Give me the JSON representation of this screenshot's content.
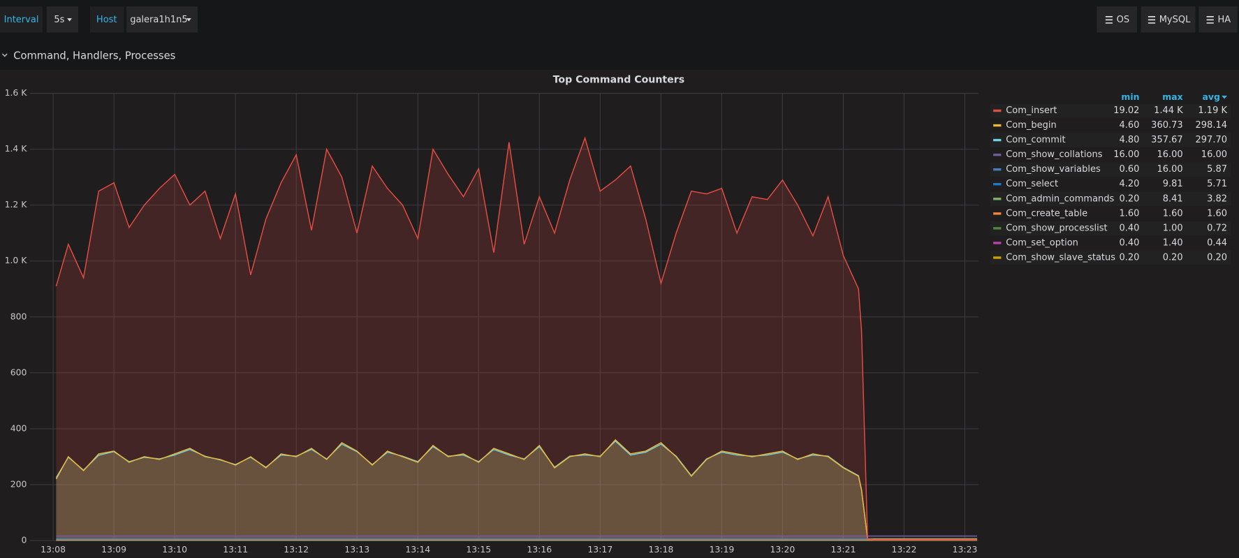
{
  "toolbar": {
    "interval_label": "Interval",
    "interval_value": "5s",
    "host_label": "Host",
    "host_value": "galera1h1n5",
    "links": [
      "OS",
      "MySQL",
      "HA"
    ]
  },
  "row_title": "Command, Handlers, Processes",
  "chart_data": {
    "type": "line",
    "title": "Top Command Counters",
    "grid": true,
    "fill": true,
    "legend_columns": [
      "min",
      "max",
      "avg"
    ],
    "xlim": [
      7.62,
      23.22
    ],
    "xticks": [
      {
        "value": 8,
        "label": "13:08"
      },
      {
        "value": 9,
        "label": "13:09"
      },
      {
        "value": 10,
        "label": "13:10"
      },
      {
        "value": 11,
        "label": "13:11"
      },
      {
        "value": 12,
        "label": "13:12"
      },
      {
        "value": 13,
        "label": "13:13"
      },
      {
        "value": 14,
        "label": "13:14"
      },
      {
        "value": 15,
        "label": "13:15"
      },
      {
        "value": 16,
        "label": "13:16"
      },
      {
        "value": 17,
        "label": "13:17"
      },
      {
        "value": 18,
        "label": "13:18"
      },
      {
        "value": 19,
        "label": "13:19"
      },
      {
        "value": 20,
        "label": "13:20"
      },
      {
        "value": 21,
        "label": "13:21"
      },
      {
        "value": 22,
        "label": "13:22"
      },
      {
        "value": 23,
        "label": "13:23"
      }
    ],
    "ylim": [
      0,
      1600
    ],
    "yticks": [
      0,
      200,
      400,
      600,
      800,
      {
        "value": 1000,
        "label": "1.0 K"
      },
      {
        "value": 1200,
        "label": "1.2 K"
      },
      {
        "value": 1400,
        "label": "1.4 K"
      },
      {
        "value": 1600,
        "label": "1.6 K"
      }
    ],
    "x": [
      8.05,
      8.25,
      8.5,
      8.75,
      9.0,
      9.25,
      9.5,
      9.75,
      10.0,
      10.25,
      10.5,
      10.75,
      11.0,
      11.25,
      11.5,
      11.75,
      12.0,
      12.25,
      12.5,
      12.75,
      13.0,
      13.25,
      13.5,
      13.75,
      14.0,
      14.25,
      14.5,
      14.75,
      15.0,
      15.25,
      15.5,
      15.75,
      16.0,
      16.25,
      16.5,
      16.75,
      17.0,
      17.25,
      17.5,
      17.75,
      18.0,
      18.25,
      18.5,
      18.75,
      19.0,
      19.25,
      19.5,
      19.75,
      20.0,
      20.25,
      20.5,
      20.75,
      21.0,
      21.25,
      21.3,
      21.4,
      21.5,
      21.75,
      22.0,
      22.25,
      22.5,
      22.75,
      23.0,
      23.2
    ],
    "series": [
      {
        "name": "Com_insert",
        "color": "#e24d42",
        "legend_stats": [
          "19.02",
          "1.44 K",
          "1.19 K"
        ],
        "values": [
          910,
          1060,
          940,
          1250,
          1280,
          1120,
          1200,
          1260,
          1310,
          1200,
          1250,
          1080,
          1240,
          950,
          1150,
          1280,
          1380,
          1110,
          1400,
          1300,
          1100,
          1340,
          1260,
          1200,
          1080,
          1400,
          1310,
          1230,
          1330,
          1030,
          1425,
          1060,
          1230,
          1100,
          1290,
          1440,
          1250,
          1290,
          1340,
          1150,
          920,
          1100,
          1250,
          1240,
          1260,
          1100,
          1230,
          1220,
          1290,
          1200,
          1090,
          1230,
          1020,
          900,
          750,
          5,
          3,
          3,
          3,
          3,
          3,
          3,
          3,
          3
        ]
      },
      {
        "name": "Com_begin",
        "color": "#eab839",
        "legend_stats": [
          "4.60",
          "360.73",
          "298.14"
        ],
        "values": [
          220,
          300,
          250,
          310,
          320,
          280,
          300,
          290,
          310,
          330,
          300,
          290,
          270,
          300,
          260,
          310,
          300,
          330,
          290,
          350,
          320,
          270,
          320,
          300,
          280,
          340,
          300,
          310,
          280,
          330,
          310,
          290,
          340,
          260,
          300,
          310,
          300,
          360,
          310,
          320,
          350,
          300,
          230,
          290,
          320,
          310,
          300,
          310,
          320,
          290,
          310,
          300,
          260,
          230,
          180,
          5,
          5,
          5,
          5,
          5,
          5,
          5,
          5,
          5
        ]
      },
      {
        "name": "Com_commit",
        "color": "#6ed0e0",
        "legend_stats": [
          "4.80",
          "357.67",
          "297.70"
        ],
        "values": [
          225,
          298,
          252,
          305,
          318,
          282,
          298,
          292,
          306,
          326,
          302,
          288,
          272,
          298,
          262,
          306,
          302,
          326,
          292,
          345,
          318,
          272,
          316,
          302,
          282,
          336,
          302,
          306,
          282,
          326,
          306,
          292,
          336,
          262,
          302,
          306,
          302,
          356,
          306,
          316,
          345,
          302,
          232,
          292,
          316,
          306,
          302,
          306,
          316,
          292,
          306,
          302,
          262,
          232,
          182,
          5,
          5,
          5,
          5,
          5,
          5,
          5,
          5,
          5
        ]
      },
      {
        "name": "Com_show_collations",
        "color": "#705da0",
        "legend_stats": [
          "16.00",
          "16.00",
          "16.00"
        ],
        "values": [
          16,
          16,
          16,
          16,
          16,
          16,
          16,
          16,
          16,
          16,
          16,
          16,
          16,
          16,
          16,
          16,
          16,
          16,
          16,
          16,
          16,
          16,
          16,
          16,
          16,
          16,
          16,
          16,
          16,
          16,
          16,
          16,
          16,
          16,
          16,
          16,
          16,
          16,
          16,
          16,
          16,
          16,
          16,
          16,
          16,
          16,
          16,
          16,
          16,
          16,
          16,
          16,
          16,
          16,
          16,
          16,
          16,
          16,
          16,
          16,
          16,
          16,
          16,
          16
        ]
      },
      {
        "name": "Com_show_variables",
        "color": "#447ebc",
        "legend_stats": [
          "0.60",
          "16.00",
          "5.87"
        ],
        "values": [
          6,
          6,
          6,
          6,
          6,
          6,
          6,
          6,
          6,
          6,
          6,
          6,
          6,
          6,
          6,
          6,
          6,
          6,
          6,
          6,
          6,
          6,
          6,
          6,
          6,
          6,
          6,
          6,
          6,
          6,
          6,
          6,
          6,
          6,
          6,
          6,
          6,
          6,
          6,
          6,
          6,
          6,
          6,
          6,
          6,
          6,
          6,
          6,
          6,
          6,
          6,
          6,
          6,
          6,
          6,
          6,
          6,
          6,
          6,
          6,
          6,
          6,
          6,
          6
        ]
      },
      {
        "name": "Com_select",
        "color": "#1f78c1",
        "legend_stats": [
          "4.20",
          "9.81",
          "5.71"
        ],
        "values": [
          5,
          5,
          5,
          5,
          5,
          5,
          5,
          5,
          5,
          5,
          5,
          5,
          5,
          5,
          5,
          5,
          5,
          5,
          5,
          5,
          5,
          5,
          5,
          5,
          5,
          5,
          5,
          5,
          5,
          5,
          5,
          5,
          5,
          5,
          5,
          5,
          5,
          5,
          5,
          5,
          5,
          5,
          5,
          5,
          5,
          5,
          5,
          5,
          5,
          5,
          5,
          5,
          5,
          5,
          5,
          5,
          5,
          5,
          5,
          5,
          5,
          5,
          5,
          5
        ]
      },
      {
        "name": "Com_admin_commands",
        "color": "#7eb26d",
        "legend_stats": [
          "0.20",
          "8.41",
          "3.82"
        ],
        "values": [
          4,
          4,
          4,
          4,
          4,
          4,
          4,
          4,
          4,
          4,
          4,
          4,
          4,
          4,
          4,
          4,
          4,
          4,
          4,
          4,
          4,
          4,
          4,
          4,
          4,
          4,
          4,
          4,
          4,
          4,
          4,
          4,
          4,
          4,
          4,
          4,
          4,
          4,
          4,
          4,
          4,
          4,
          4,
          4,
          4,
          4,
          4,
          4,
          4,
          4,
          4,
          4,
          4,
          4,
          4,
          4,
          4,
          4,
          4,
          4,
          4,
          4,
          4,
          4
        ]
      },
      {
        "name": "Com_create_table",
        "color": "#ef843c",
        "legend_stats": [
          "1.60",
          "1.60",
          "1.60"
        ],
        "values": [
          1.6,
          1.6,
          1.6,
          1.6,
          1.6,
          1.6,
          1.6,
          1.6,
          1.6,
          1.6,
          1.6,
          1.6,
          1.6,
          1.6,
          1.6,
          1.6,
          1.6,
          1.6,
          1.6,
          1.6,
          1.6,
          1.6,
          1.6,
          1.6,
          1.6,
          1.6,
          1.6,
          1.6,
          1.6,
          1.6,
          1.6,
          1.6,
          1.6,
          1.6,
          1.6,
          1.6,
          1.6,
          1.6,
          1.6,
          1.6,
          1.6,
          1.6,
          1.6,
          1.6,
          1.6,
          1.6,
          1.6,
          1.6,
          1.6,
          1.6,
          1.6,
          1.6,
          1.6,
          1.6,
          1.6,
          1.6,
          1.6,
          1.6,
          1.6,
          1.6,
          1.6,
          1.6,
          1.6,
          1.6
        ]
      },
      {
        "name": "Com_show_processlist",
        "color": "#508642",
        "legend_stats": [
          "0.40",
          "1.00",
          "0.72"
        ],
        "values": [
          0.7,
          0.7,
          0.7,
          0.7,
          0.7,
          0.7,
          0.7,
          0.7,
          0.7,
          0.7,
          0.7,
          0.7,
          0.7,
          0.7,
          0.7,
          0.7,
          0.7,
          0.7,
          0.7,
          0.7,
          0.7,
          0.7,
          0.7,
          0.7,
          0.7,
          0.7,
          0.7,
          0.7,
          0.7,
          0.7,
          0.7,
          0.7,
          0.7,
          0.7,
          0.7,
          0.7,
          0.7,
          0.7,
          0.7,
          0.7,
          0.7,
          0.7,
          0.7,
          0.7,
          0.7,
          0.7,
          0.7,
          0.7,
          0.7,
          0.7,
          0.7,
          0.7,
          0.7,
          0.7,
          0.7,
          0.7,
          0.7,
          0.7,
          0.7,
          0.7,
          0.7,
          0.7,
          0.7,
          0.7
        ]
      },
      {
        "name": "Com_set_option",
        "color": "#ba43a9",
        "legend_stats": [
          "0.40",
          "1.40",
          "0.44"
        ],
        "values": [
          0.4,
          0.4,
          0.4,
          0.4,
          0.4,
          0.4,
          0.4,
          0.4,
          0.4,
          0.4,
          0.4,
          0.4,
          0.4,
          0.4,
          0.4,
          0.4,
          0.4,
          0.4,
          0.4,
          0.4,
          0.4,
          0.4,
          0.4,
          0.4,
          0.4,
          0.4,
          0.4,
          0.4,
          0.4,
          0.4,
          0.4,
          0.4,
          0.4,
          0.4,
          0.4,
          0.4,
          0.4,
          0.4,
          0.4,
          0.4,
          0.4,
          0.4,
          0.4,
          0.4,
          0.4,
          0.4,
          0.4,
          0.4,
          0.4,
          0.4,
          0.4,
          0.4,
          0.4,
          0.4,
          0.4,
          0.4,
          0.4,
          0.4,
          0.4,
          0.4,
          0.4,
          0.4,
          0.4,
          0.4
        ]
      },
      {
        "name": "Com_show_slave_status",
        "color": "#cca300",
        "legend_stats": [
          "0.20",
          "0.20",
          "0.20"
        ],
        "values": [
          0.2,
          0.2,
          0.2,
          0.2,
          0.2,
          0.2,
          0.2,
          0.2,
          0.2,
          0.2,
          0.2,
          0.2,
          0.2,
          0.2,
          0.2,
          0.2,
          0.2,
          0.2,
          0.2,
          0.2,
          0.2,
          0.2,
          0.2,
          0.2,
          0.2,
          0.2,
          0.2,
          0.2,
          0.2,
          0.2,
          0.2,
          0.2,
          0.2,
          0.2,
          0.2,
          0.2,
          0.2,
          0.2,
          0.2,
          0.2,
          0.2,
          0.2,
          0.2,
          0.2,
          0.2,
          0.2,
          0.2,
          0.2,
          0.2,
          0.2,
          0.2,
          0.2,
          0.2,
          0.2,
          0.2,
          0.2,
          0.2,
          0.2,
          0.2,
          0.2,
          0.2,
          0.2,
          0.2,
          0.2
        ]
      }
    ]
  }
}
